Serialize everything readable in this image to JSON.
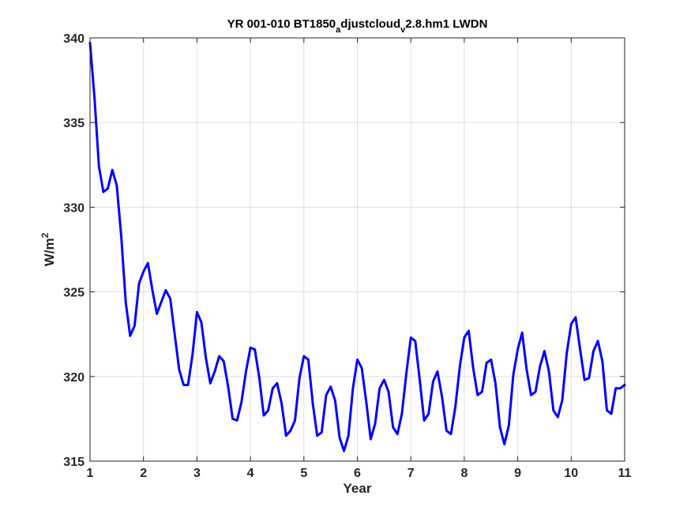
{
  "chart_data": {
    "type": "line",
    "title": {
      "parts": [
        {
          "text": "YR 001-010 BT1850",
          "sub": false
        },
        {
          "text": "a",
          "sub": true
        },
        {
          "text": "djustcloud",
          "sub": false
        },
        {
          "text": "v",
          "sub": true
        },
        {
          "text": "2.8.hm1 LWDN",
          "sub": false
        }
      ]
    },
    "xlabel": "Year",
    "ylabel": {
      "base": "W/m",
      "sup": "2"
    },
    "xlim": [
      1,
      11
    ],
    "ylim": [
      315,
      340
    ],
    "xticks": [
      1,
      2,
      3,
      4,
      5,
      6,
      7,
      8,
      9,
      10,
      11
    ],
    "yticks": [
      315,
      320,
      325,
      330,
      335,
      340
    ],
    "grid": true,
    "legend": "none",
    "series": [
      {
        "color": "#0000ff",
        "x": [
          1.0,
          1.083,
          1.167,
          1.25,
          1.333,
          1.417,
          1.5,
          1.583,
          1.667,
          1.75,
          1.833,
          1.917,
          2.0,
          2.083,
          2.167,
          2.25,
          2.333,
          2.417,
          2.5,
          2.583,
          2.667,
          2.75,
          2.833,
          2.917,
          3.0,
          3.083,
          3.167,
          3.25,
          3.333,
          3.417,
          3.5,
          3.583,
          3.667,
          3.75,
          3.833,
          3.917,
          4.0,
          4.083,
          4.167,
          4.25,
          4.333,
          4.417,
          4.5,
          4.583,
          4.667,
          4.75,
          4.833,
          4.917,
          5.0,
          5.083,
          5.167,
          5.25,
          5.333,
          5.417,
          5.5,
          5.583,
          5.667,
          5.75,
          5.833,
          5.917,
          6.0,
          6.083,
          6.167,
          6.25,
          6.333,
          6.417,
          6.5,
          6.583,
          6.667,
          6.75,
          6.833,
          6.917,
          7.0,
          7.083,
          7.167,
          7.25,
          7.333,
          7.417,
          7.5,
          7.583,
          7.667,
          7.75,
          7.833,
          7.917,
          8.0,
          8.083,
          8.167,
          8.25,
          8.333,
          8.417,
          8.5,
          8.583,
          8.667,
          8.75,
          8.833,
          8.917,
          9.0,
          9.083,
          9.167,
          9.25,
          9.333,
          9.417,
          9.5,
          9.583,
          9.667,
          9.75,
          9.833,
          9.917,
          10.0,
          10.083,
          10.167,
          10.25,
          10.333,
          10.417,
          10.5,
          10.583,
          10.667,
          10.75,
          10.833,
          10.917,
          11.0
        ],
        "y": [
          339.7,
          336.5,
          332.4,
          330.9,
          331.1,
          332.2,
          331.3,
          328.3,
          324.4,
          322.4,
          323.0,
          325.5,
          326.2,
          326.7,
          325.1,
          323.7,
          324.4,
          325.1,
          324.6,
          322.5,
          320.4,
          319.5,
          319.5,
          321.3,
          323.8,
          323.2,
          321.1,
          319.6,
          320.3,
          321.2,
          320.9,
          319.4,
          317.5,
          317.4,
          318.5,
          320.3,
          321.7,
          321.6,
          319.9,
          317.7,
          318.0,
          319.3,
          319.6,
          318.4,
          316.5,
          316.8,
          317.4,
          319.9,
          321.2,
          321.0,
          318.4,
          316.5,
          316.7,
          318.9,
          319.4,
          318.6,
          316.4,
          315.6,
          316.5,
          319.3,
          321.0,
          320.5,
          318.5,
          316.3,
          317.2,
          319.3,
          319.8,
          319.1,
          317.0,
          316.6,
          317.8,
          320.2,
          322.3,
          322.1,
          319.8,
          317.4,
          317.8,
          319.7,
          320.3,
          318.8,
          316.8,
          316.6,
          318.2,
          320.6,
          322.3,
          322.7,
          320.5,
          318.9,
          319.1,
          320.8,
          321.0,
          319.6,
          317.0,
          316.0,
          317.1,
          320.1,
          321.6,
          322.6,
          320.4,
          318.9,
          319.1,
          320.6,
          321.5,
          320.3,
          318.0,
          317.6,
          318.6,
          321.4,
          323.1,
          323.5,
          321.6,
          319.8,
          319.9,
          321.5,
          322.1,
          320.9,
          318.0,
          317.8,
          319.3,
          319.3,
          319.5
        ]
      }
    ]
  }
}
